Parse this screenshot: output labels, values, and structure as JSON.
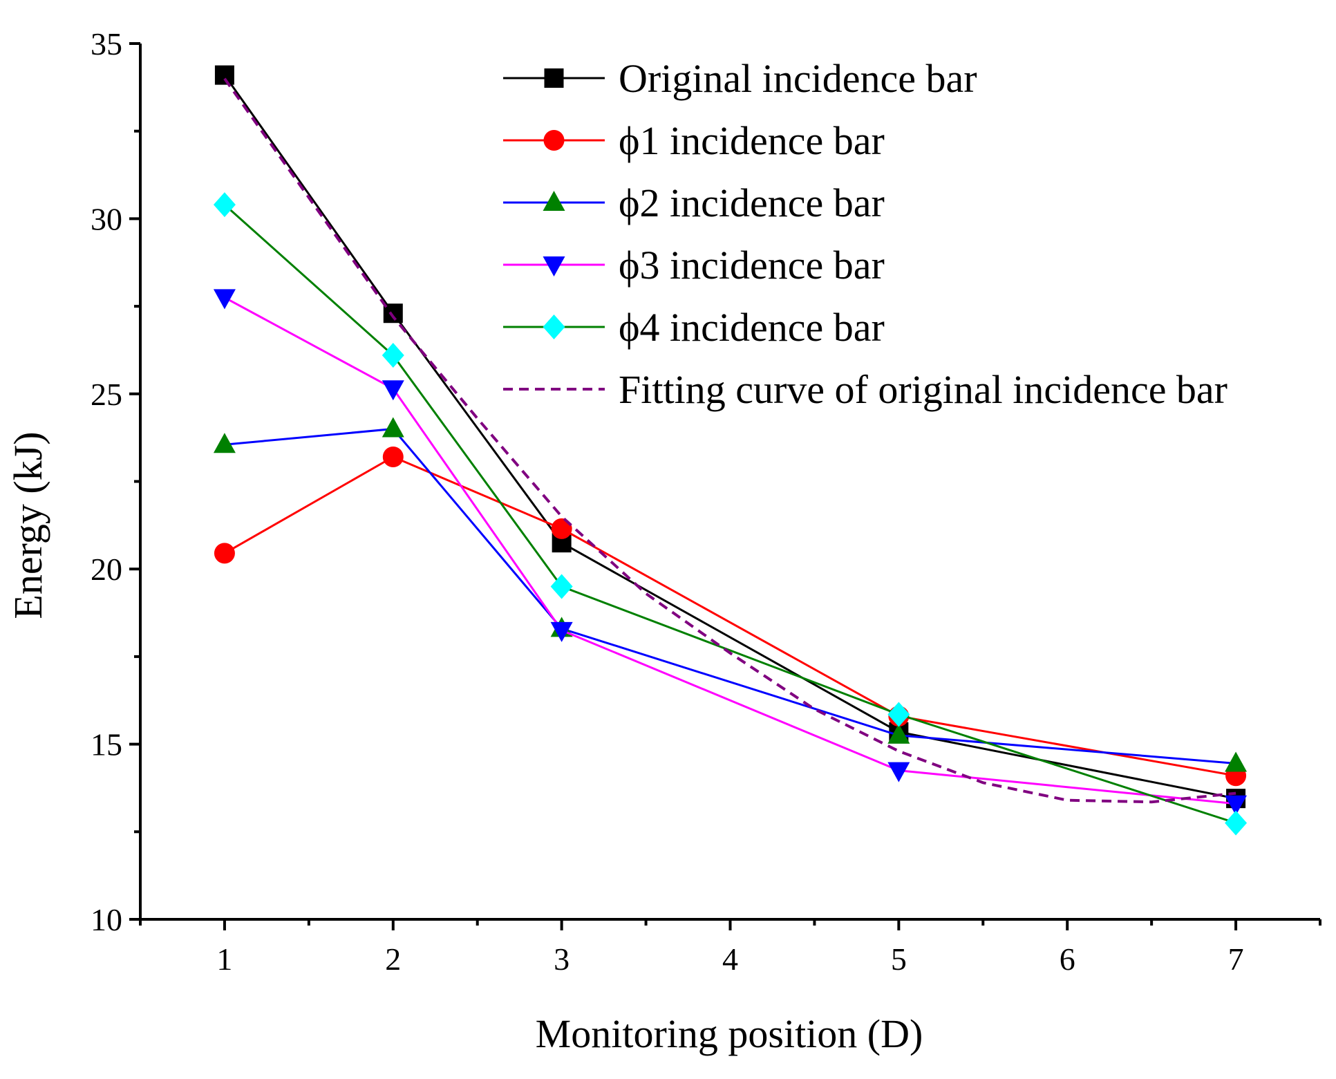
{
  "chart_data": {
    "type": "line",
    "title": "",
    "xlabel": "Monitoring position (D)",
    "ylabel": "Energy (kJ)",
    "xlim": [
      0.5,
      7.5
    ],
    "ylim": [
      10,
      35
    ],
    "xticks": [
      1,
      2,
      3,
      4,
      5,
      6,
      7
    ],
    "yticks": [
      10,
      15,
      20,
      25,
      30,
      35
    ],
    "grid": false,
    "legend_position": "top-right",
    "series": [
      {
        "name": "Original incidence bar",
        "color": "#000000",
        "marker": "square",
        "dashed": false,
        "x": [
          1,
          2,
          3,
          5,
          7
        ],
        "y": [
          34.1,
          27.3,
          20.75,
          15.35,
          13.45
        ]
      },
      {
        "name": "ϕ1 incidence bar",
        "color": "#ff0000",
        "marker": "circle",
        "dashed": false,
        "x": [
          1,
          2,
          3,
          5,
          7
        ],
        "y": [
          20.45,
          23.2,
          21.15,
          15.8,
          14.1
        ]
      },
      {
        "name": "ϕ2 incidence bar",
        "color": "#0000ff",
        "marker": "triangle-up",
        "marker_color": "#008000",
        "dashed": false,
        "x": [
          1,
          2,
          3,
          5,
          7
        ],
        "y": [
          23.55,
          24.0,
          18.3,
          15.25,
          14.45
        ]
      },
      {
        "name": "ϕ3 incidence bar",
        "color": "#ff00ff",
        "marker": "triangle-down",
        "marker_color": "#0000ff",
        "dashed": false,
        "x": [
          1,
          2,
          3,
          5,
          7
        ],
        "y": [
          27.75,
          25.15,
          18.25,
          14.25,
          13.3
        ]
      },
      {
        "name": "ϕ4 incidence bar",
        "color": "#008000",
        "marker": "diamond",
        "marker_color": "#00ffff",
        "dashed": false,
        "x": [
          1,
          2,
          3,
          5,
          7
        ],
        "y": [
          30.4,
          26.1,
          19.5,
          15.85,
          12.75
        ]
      },
      {
        "name": "Fitting curve of original incidence bar",
        "color": "#800080",
        "marker": "none",
        "dashed": true,
        "x": [
          1,
          1.5,
          2,
          2.5,
          3,
          3.5,
          4,
          4.5,
          5,
          5.5,
          6,
          6.5,
          7
        ],
        "y": [
          34.0,
          30.6,
          27.2,
          24.3,
          21.5,
          19.3,
          17.6,
          16.0,
          14.8,
          13.9,
          13.4,
          13.35,
          13.6
        ]
      }
    ]
  }
}
